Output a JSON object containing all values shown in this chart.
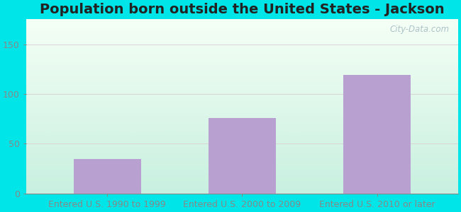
{
  "title": "Population born outside the United States - Jackson",
  "categories": [
    "Entered U.S. 1990 to 1999",
    "Entered U.S. 2000 to 2009",
    "Entered U.S. 2010 or later"
  ],
  "values": [
    35,
    76,
    119
  ],
  "bar_color": "#b8a0d0",
  "ylim": [
    0,
    175
  ],
  "yticks": [
    0,
    50,
    100,
    150
  ],
  "background_outer": "#00e5e8",
  "background_top": "#f5fff5",
  "background_bottom_left": "#d0f5e8",
  "background_bottom_right": "#e0d8f0",
  "grid_color": "#d8d8d8",
  "title_fontsize": 14,
  "tick_fontsize": 9,
  "watermark": "City-Data.com",
  "title_color": "#222222",
  "tick_color": "#444444"
}
